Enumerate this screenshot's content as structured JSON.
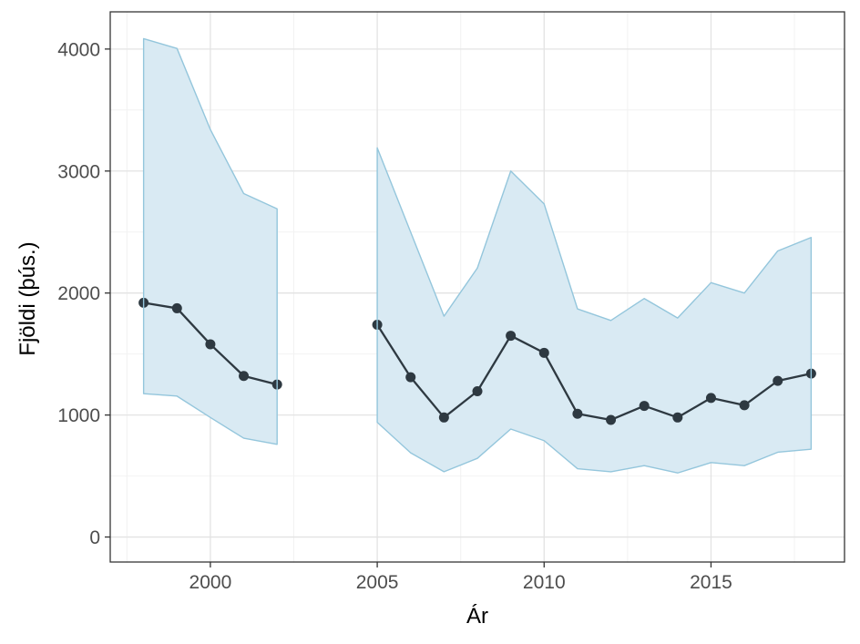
{
  "figure": {
    "background": "#ffffff"
  },
  "chart_data": {
    "type": "line",
    "subtype": "line-with-confidence-ribbon",
    "title": "",
    "xlabel": "Ár",
    "ylabel": "Fjöldi (þús.)",
    "xlim": [
      1997,
      2019
    ],
    "ylim": [
      -205,
      4305
    ],
    "x_major_ticks": [
      2000,
      2005,
      2010,
      2015
    ],
    "x_minor_ticks": [
      1997.5,
      2002.5,
      2007.5,
      2012.5,
      2017.5
    ],
    "y_major_ticks": [
      0,
      1000,
      2000,
      3000,
      4000
    ],
    "y_minor_ticks": [
      500,
      1500,
      2500,
      3500
    ],
    "grid": "major-and-minor",
    "legend_position": "none",
    "segments": [
      {
        "name": "estimate-1998-2002",
        "x": [
          1998,
          1999,
          2000,
          2001,
          2002
        ],
        "mean": [
          1920,
          1875,
          1580,
          1320,
          1250
        ],
        "upper": [
          4085,
          4005,
          3340,
          2815,
          2690
        ],
        "lower": [
          1175,
          1155,
          980,
          810,
          760
        ]
      },
      {
        "name": "estimate-2005-2018",
        "x": [
          2005,
          2006,
          2007,
          2008,
          2009,
          2010,
          2011,
          2012,
          2013,
          2014,
          2015,
          2016,
          2017,
          2018
        ],
        "mean": [
          1740,
          1310,
          980,
          1195,
          1650,
          1510,
          1010,
          960,
          1075,
          980,
          1140,
          1080,
          1280,
          1340
        ],
        "upper": [
          3190,
          2500,
          1810,
          2205,
          3000,
          2730,
          1870,
          1775,
          1955,
          1795,
          2085,
          2000,
          2345,
          2455
        ],
        "lower": [
          940,
          690,
          535,
          645,
          885,
          790,
          560,
          535,
          585,
          525,
          610,
          585,
          695,
          720
        ]
      }
    ],
    "colors": {
      "ribbon_fill": "#d9eaf3",
      "ribbon_edge": "#94c6dc",
      "line": "#2e3941",
      "point": "#2e3941",
      "grid_major": "#e3e3e3",
      "grid_minor": "#f2f2f2",
      "panel_border": "#353535",
      "tick": "#333333",
      "tick_label": "#4d4d4d",
      "axis_title": "#000000",
      "background": "#ffffff"
    },
    "style": {
      "point_radius": 5.5,
      "line_width": 2.3,
      "ribbon_edge_width": 1.4
    }
  }
}
